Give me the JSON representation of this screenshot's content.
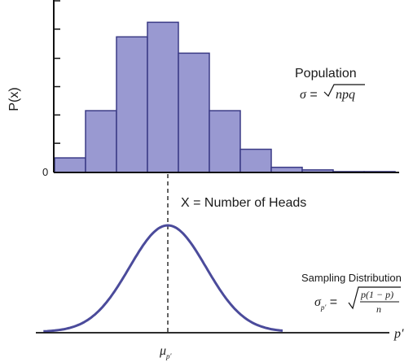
{
  "chart_data": [
    {
      "type": "bar",
      "ylabel": "P(x)",
      "y_origin_label": "0",
      "xlabel": "X = Number of Heads",
      "values": [
        0.085,
        0.36,
        0.79,
        0.875,
        0.695,
        0.36,
        0.135,
        0.03,
        0.015,
        0.005,
        0.005
      ],
      "ylim": [
        0,
        1
      ],
      "y_ticks": [
        0.17,
        0.335,
        0.5,
        0.665,
        0.835,
        1.0
      ],
      "bar_color": "#9999d1",
      "bar_edge_color": "#3b3b86",
      "annotation": {
        "title": "Population",
        "formula_lhs": "σ",
        "formula_eq": " = ",
        "formula_radicand": "npq"
      }
    },
    {
      "type": "line",
      "xlabel": "p′",
      "center_label": "μ",
      "center_sub": "p′",
      "curve": {
        "mean": 0,
        "sd": 1,
        "xlim": [
          -3.25,
          3.0
        ]
      },
      "line_color": "#4b4b9b",
      "annotation": {
        "title": "Sampling Distribution",
        "formula_lhs": "σ",
        "formula_sub": "p′",
        "formula_eq": " = ",
        "numerator": "p(1 − p)",
        "denominator": "n"
      }
    }
  ]
}
